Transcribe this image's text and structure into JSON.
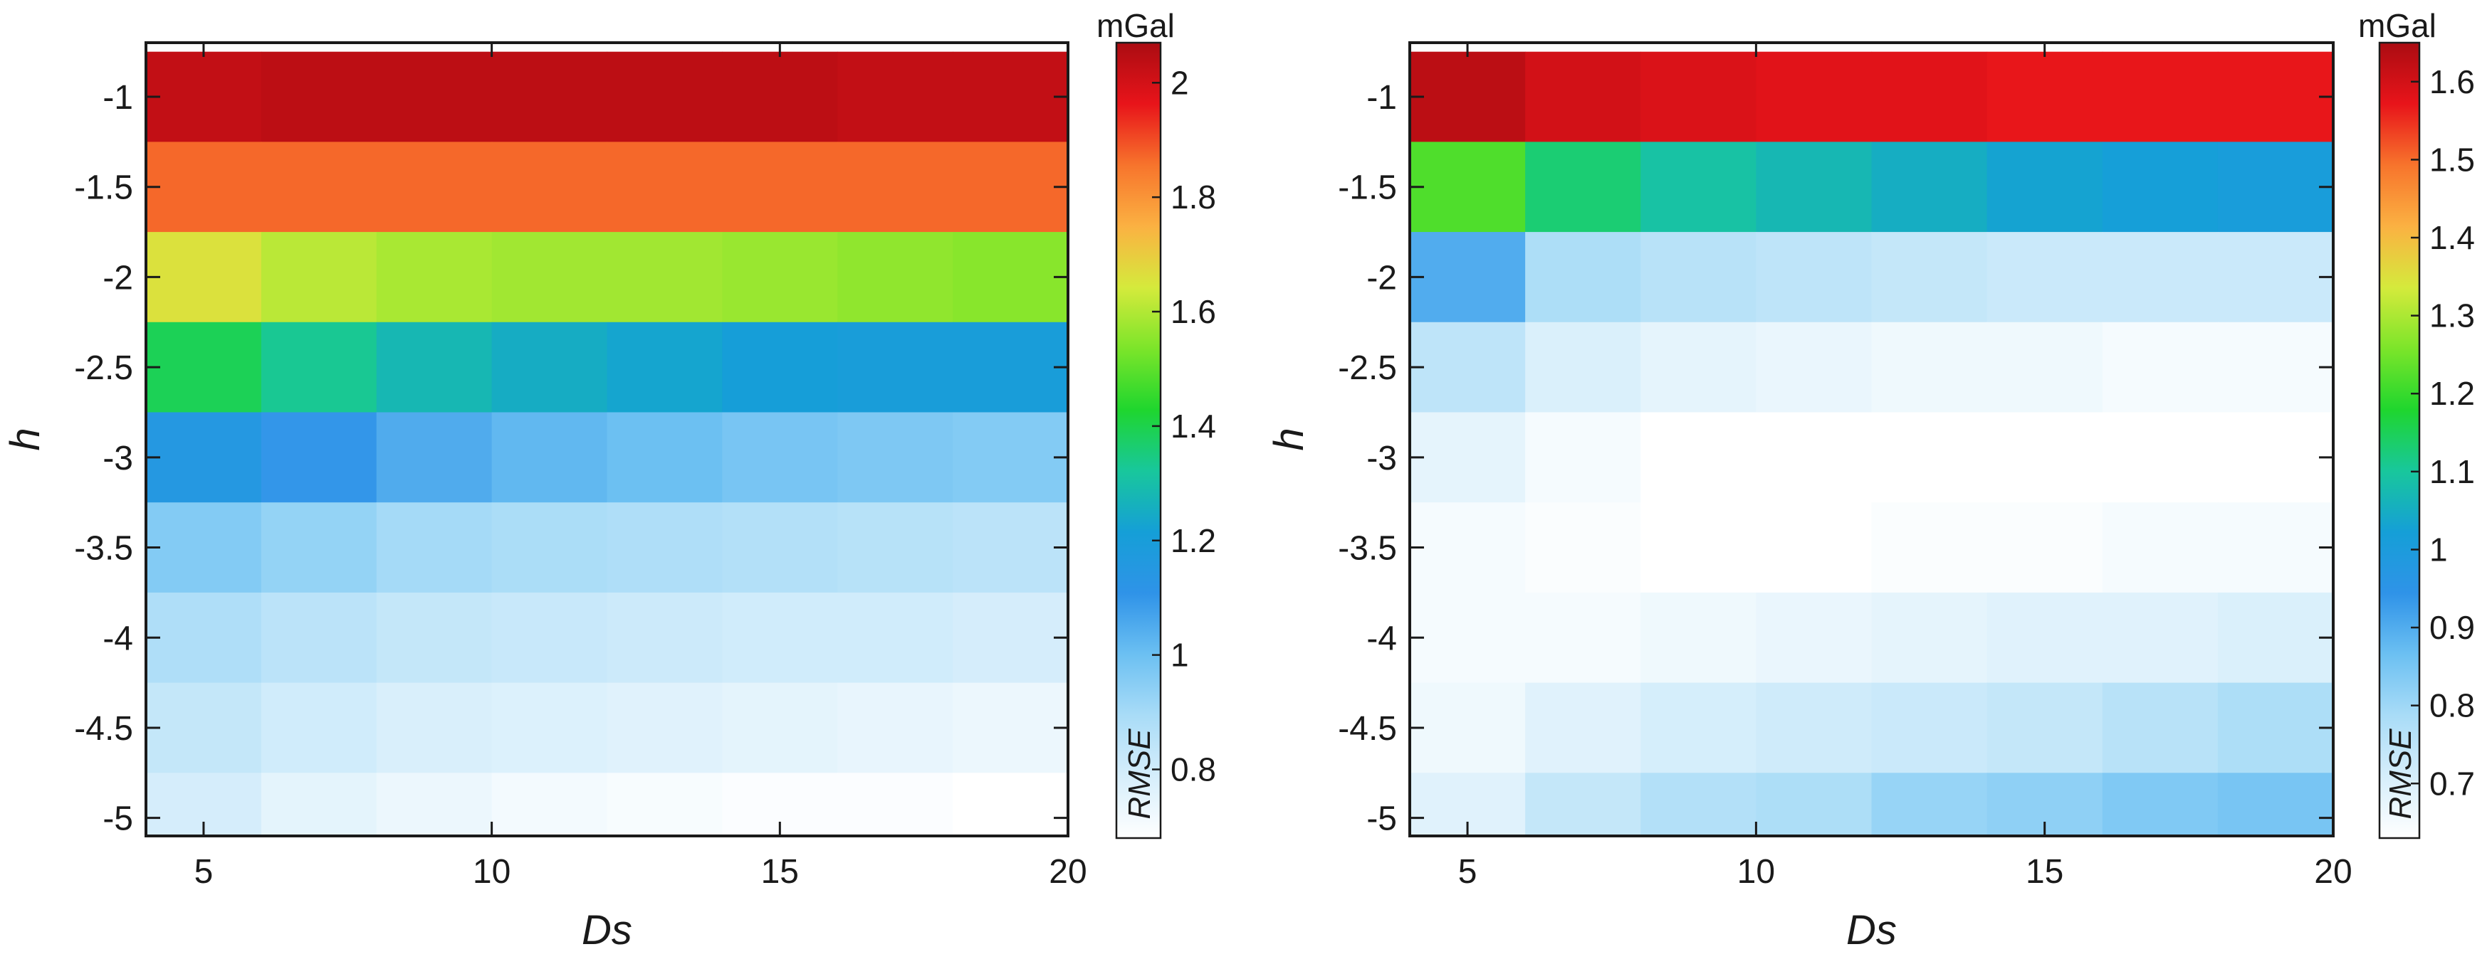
{
  "figure": {
    "panels": [
      {
        "id": "left",
        "unit_label": "mGal",
        "colorbar_title": "RMSE",
        "colorbar_ticks": [
          "0.8",
          "1",
          "1.2",
          "1.4",
          "1.6",
          "1.8",
          "2"
        ]
      },
      {
        "id": "right",
        "unit_label": "mGal",
        "colorbar_title": "RMSE",
        "colorbar_ticks": [
          "0.7",
          "0.8",
          "0.9",
          "1",
          "1.1",
          "1.2",
          "1.3",
          "1.4",
          "1.5",
          "1.6"
        ]
      }
    ],
    "colors": {
      "scale": [
        "#ffffff",
        "#d6eefb",
        "#a9dcf7",
        "#6cc0f2",
        "#2f93e8",
        "#159fd7",
        "#18c79c",
        "#1fd62e",
        "#7ce52a",
        "#d5ea3c",
        "#fbb142",
        "#f7742c",
        "#e8141a",
        "#ab0c12"
      ]
    }
  },
  "chart_data": [
    {
      "type": "heatmap",
      "title": "",
      "xlabel": "Ds",
      "ylabel": "h",
      "x": [
        5,
        7,
        9,
        11,
        13,
        15,
        17,
        19
      ],
      "y": [
        -1,
        -1.5,
        -2,
        -2.5,
        -3,
        -3.5,
        -4,
        -4.5,
        -5
      ],
      "xlim": [
        4,
        20
      ],
      "ylim": [
        -5.1,
        -0.7
      ],
      "xticks": [
        5,
        10,
        15,
        20
      ],
      "yticks": [
        -1,
        -1.5,
        -2,
        -2.5,
        -3,
        -3.5,
        -4,
        -4.5,
        -5
      ],
      "xtick_labels": [
        "5",
        "10",
        "15",
        "20"
      ],
      "ytick_labels": [
        "-1",
        "-1.5",
        "-2",
        "-2.5",
        "-3",
        "-3.5",
        "-4",
        "-4.5",
        "-5"
      ],
      "clim": [
        0.68,
        2.07
      ],
      "colorbar_title": "RMSE",
      "unit": "mGal",
      "values": [
        [
          2.03,
          2.04,
          2.04,
          2.04,
          2.04,
          2.04,
          2.03,
          2.03
        ],
        [
          1.87,
          1.87,
          1.87,
          1.87,
          1.87,
          1.87,
          1.87,
          1.87
        ],
        [
          1.66,
          1.61,
          1.59,
          1.58,
          1.58,
          1.57,
          1.56,
          1.55
        ],
        [
          1.39,
          1.33,
          1.28,
          1.25,
          1.23,
          1.21,
          1.2,
          1.2
        ],
        [
          1.15,
          1.1,
          1.05,
          1.02,
          1.0,
          0.98,
          0.97,
          0.96
        ],
        [
          0.96,
          0.93,
          0.9,
          0.89,
          0.88,
          0.87,
          0.86,
          0.85
        ],
        [
          0.88,
          0.85,
          0.83,
          0.82,
          0.81,
          0.8,
          0.8,
          0.79
        ],
        [
          0.83,
          0.8,
          0.78,
          0.77,
          0.76,
          0.75,
          0.74,
          0.73
        ],
        [
          0.79,
          0.75,
          0.73,
          0.71,
          0.7,
          0.69,
          0.69,
          0.68
        ]
      ]
    },
    {
      "type": "heatmap",
      "title": "",
      "xlabel": "Ds",
      "ylabel": "h",
      "x": [
        5,
        7,
        9,
        11,
        13,
        15,
        17,
        19
      ],
      "y": [
        -1,
        -1.5,
        -2,
        -2.5,
        -3,
        -3.5,
        -4,
        -4.5,
        -5
      ],
      "xlim": [
        4,
        20
      ],
      "ylim": [
        -5.1,
        -0.7
      ],
      "xticks": [
        5,
        10,
        15,
        20
      ],
      "yticks": [
        -1,
        -1.5,
        -2,
        -2.5,
        -3,
        -3.5,
        -4,
        -4.5,
        -5
      ],
      "xtick_labels": [
        "5",
        "10",
        "15",
        "20"
      ],
      "ytick_labels": [
        "-1",
        "-1.5",
        "-2",
        "-2.5",
        "-3",
        "-3.5",
        "-4",
        "-4.5",
        "-5"
      ],
      "clim": [
        0.63,
        1.65
      ],
      "colorbar_title": "RMSE",
      "unit": "mGal",
      "values": [
        [
          1.63,
          1.6,
          1.59,
          1.58,
          1.58,
          1.57,
          1.57,
          1.57
        ],
        [
          1.22,
          1.13,
          1.09,
          1.07,
          1.05,
          1.03,
          1.02,
          1.01
        ],
        [
          0.9,
          0.78,
          0.76,
          0.75,
          0.74,
          0.73,
          0.73,
          0.73
        ],
        [
          0.75,
          0.7,
          0.68,
          0.67,
          0.66,
          0.66,
          0.65,
          0.65
        ],
        [
          0.68,
          0.65,
          0.63,
          0.63,
          0.63,
          0.63,
          0.63,
          0.63
        ],
        [
          0.65,
          0.64,
          0.63,
          0.63,
          0.64,
          0.64,
          0.65,
          0.65
        ],
        [
          0.65,
          0.65,
          0.66,
          0.67,
          0.68,
          0.69,
          0.69,
          0.7
        ],
        [
          0.66,
          0.69,
          0.71,
          0.72,
          0.73,
          0.74,
          0.76,
          0.78
        ],
        [
          0.69,
          0.74,
          0.77,
          0.78,
          0.81,
          0.82,
          0.84,
          0.85
        ]
      ]
    }
  ]
}
